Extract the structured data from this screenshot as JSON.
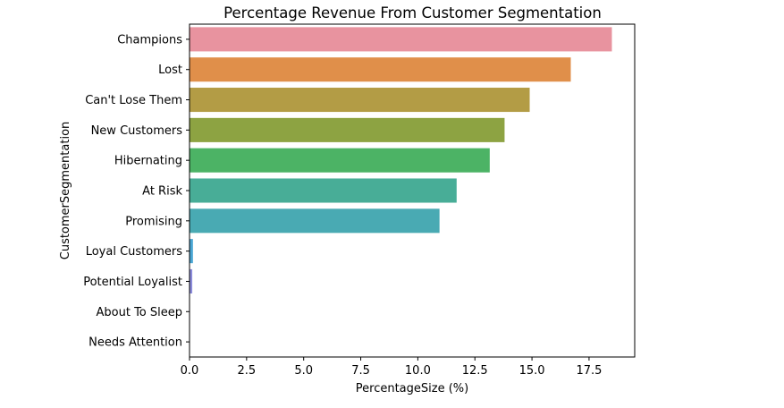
{
  "chart_data": {
    "type": "bar",
    "orientation": "horizontal",
    "title": "Percentage Revenue From Customer Segmentation",
    "xlabel": "PercentageSize (%)",
    "ylabel": "CustomerSegmentation",
    "xlim": [
      0,
      19.5
    ],
    "xticks": [
      "0.0",
      "2.5",
      "5.0",
      "7.5",
      "10.0",
      "12.5",
      "15.0",
      "17.5"
    ],
    "categories": [
      "Champions",
      "Lost",
      "Can't Lose Them",
      "New Customers",
      "Hibernating",
      "At Risk",
      "Promising",
      "Loyal Customers",
      "Potential Loyalist",
      "About To Sleep",
      "Needs Attention"
    ],
    "values": [
      18.5,
      16.7,
      14.9,
      13.8,
      13.15,
      11.7,
      10.95,
      0.15,
      0.12,
      0.02,
      0.01
    ],
    "colors": [
      "#e8939f",
      "#e08f4a",
      "#b39c45",
      "#8da342",
      "#4cb365",
      "#48ad97",
      "#49aab3",
      "#4aa6d4",
      "#8c8cdb",
      "#d886d8",
      "#e58bbd"
    ],
    "grid": false,
    "legend": "none"
  }
}
